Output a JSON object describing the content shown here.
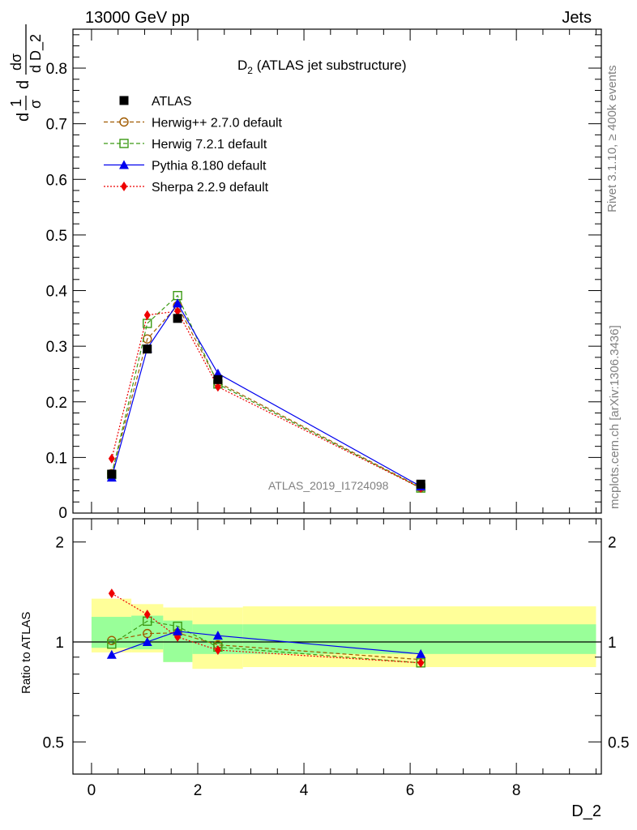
{
  "header": {
    "left": "13000 GeV pp",
    "right": "Jets"
  },
  "side_text": {
    "rivet": "Rivet 3.1.10, ≥ 400k events",
    "mcplots": "mcplots.cern.ch [arXiv:1306.3436]"
  },
  "colors": {
    "atlas": "#000000",
    "herwigpp": "#a05a00",
    "herwig7": "#3c9a14",
    "pythia": "#0000ee",
    "sherpa": "#ee0000",
    "band_inner": "#99ff99",
    "band_outer": "#ffff99"
  },
  "chart_data": [
    {
      "type": "line",
      "title_main": "D",
      "title_sub": "2",
      "title_rest": " (ATLAS jet substructure)",
      "ylabel": {
        "a_num": "1",
        "a_den": "σ",
        "b_num": "dσ",
        "b_den": "d D_2",
        "prefix": "d"
      },
      "xlim": [
        -0.35,
        9.6
      ],
      "ylim": [
        0,
        0.87
      ],
      "yticks": [
        0.1,
        0.2,
        0.3,
        0.4,
        0.5,
        0.6,
        0.7,
        0.8
      ],
      "ytick_labels": [
        "0.1",
        "0.2",
        "0.3",
        "0.4",
        "0.5",
        "0.6",
        "0.7",
        "0.8"
      ],
      "y0_label": "0",
      "watermark": "ATLAS_2019_I1724098",
      "x": [
        0.38,
        1.05,
        1.62,
        2.38,
        6.2
      ],
      "series": [
        {
          "name": "ATLAS",
          "key": "atlas",
          "values": [
            0.07,
            0.295,
            0.35,
            0.24,
            0.052
          ]
        },
        {
          "name": "Herwig++ 2.7.0 default",
          "key": "herwigpp",
          "values": [
            0.071,
            0.313,
            0.373,
            0.235,
            0.046
          ]
        },
        {
          "name": "Herwig 7.2.1 default",
          "key": "herwig7",
          "values": [
            0.069,
            0.341,
            0.391,
            0.232,
            0.045
          ]
        },
        {
          "name": "Pythia 8.180 default",
          "key": "pythia",
          "values": [
            0.064,
            0.296,
            0.377,
            0.251,
            0.048
          ]
        },
        {
          "name": "Sherpa 2.2.9 default",
          "key": "sherpa",
          "values": [
            0.098,
            0.356,
            0.363,
            0.227,
            0.045
          ]
        }
      ]
    },
    {
      "type": "line",
      "ylabel": "Ratio to ATLAS",
      "xlabel": "D_2",
      "xlim": [
        -0.35,
        9.6
      ],
      "ylim": [
        0.4,
        2.35
      ],
      "log_y": true,
      "yticks": [
        0.5,
        1,
        2
      ],
      "ytick_labels": [
        "0.5",
        "1",
        "2"
      ],
      "xticks": [
        0,
        2,
        4,
        6,
        8
      ],
      "xtick_labels": [
        "0",
        "2",
        "4",
        "6",
        "8"
      ],
      "bins": [
        [
          0,
          0.75
        ],
        [
          0.75,
          1.35
        ],
        [
          1.35,
          1.9
        ],
        [
          1.9,
          2.85
        ],
        [
          2.85,
          9.5
        ]
      ],
      "band_inner": [
        [
          0.96,
          1.19
        ],
        [
          0.95,
          1.2
        ],
        [
          0.87,
          1.16
        ],
        [
          0.92,
          1.13
        ],
        [
          0.92,
          1.13
        ]
      ],
      "band_outer": [
        [
          0.93,
          1.35
        ],
        [
          0.93,
          1.3
        ],
        [
          0.87,
          1.27
        ],
        [
          0.83,
          1.27
        ],
        [
          0.84,
          1.28
        ]
      ],
      "x": [
        0.38,
        1.05,
        1.62,
        2.38,
        6.2
      ],
      "series": [
        {
          "name": "Herwig++ 2.7.0 default",
          "key": "herwigpp",
          "values": [
            1.01,
            1.06,
            1.065,
            0.98,
            0.885
          ]
        },
        {
          "name": "Herwig 7.2.1 default",
          "key": "herwig7",
          "values": [
            0.985,
            1.155,
            1.115,
            0.965,
            0.865
          ]
        },
        {
          "name": "Pythia 8.180 default",
          "key": "pythia",
          "values": [
            0.915,
            1.0,
            1.077,
            1.045,
            0.92
          ]
        },
        {
          "name": "Sherpa 2.2.9 default",
          "key": "sherpa",
          "values": [
            1.4,
            1.21,
            1.035,
            0.945,
            0.865
          ]
        }
      ]
    }
  ]
}
